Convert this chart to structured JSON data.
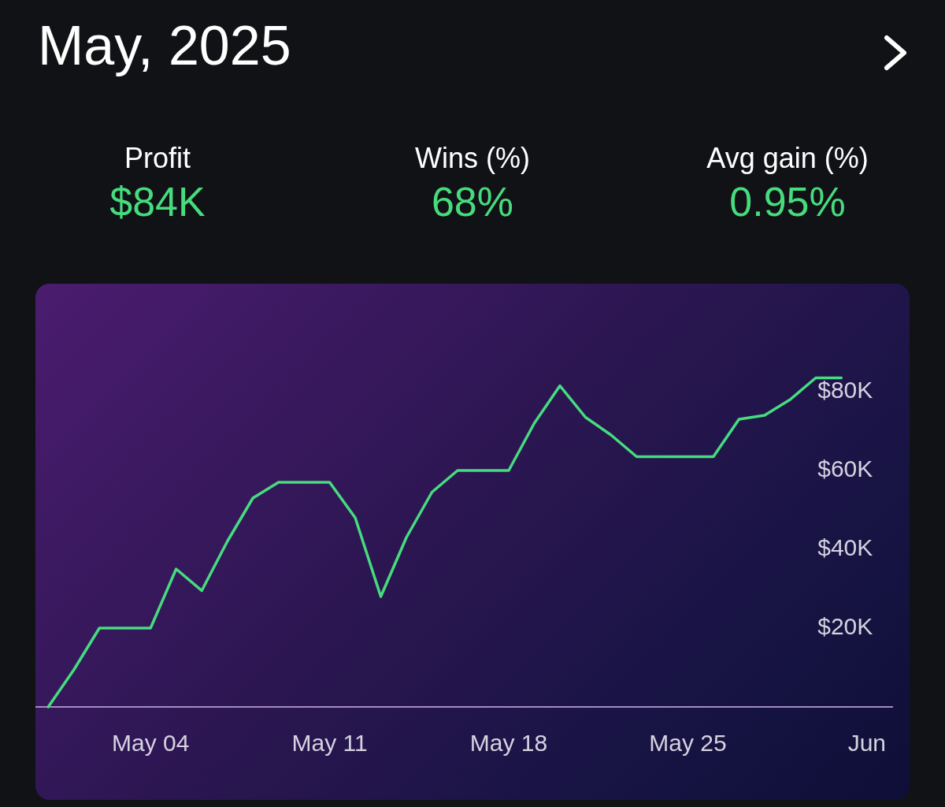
{
  "chart_data": [
    {
      "type": "other",
      "title": "May, 2025",
      "categories": [
        "Profit",
        "Wins (%)",
        "Avg gain (%)"
      ],
      "value_labels": [
        "$84K",
        "68%",
        "0.95%"
      ],
      "color": "#46dc7e"
    },
    {
      "type": "line",
      "x": [
        "2025-04-30",
        "2025-05-01",
        "2025-05-02",
        "2025-05-04",
        "2025-05-05",
        "2025-05-06",
        "2025-05-07",
        "2025-05-08",
        "2025-05-09",
        "2025-05-11",
        "2025-05-12",
        "2025-05-13",
        "2025-05-14",
        "2025-05-15",
        "2025-05-16",
        "2025-05-18",
        "2025-05-19",
        "2025-05-20",
        "2025-05-21",
        "2025-05-22",
        "2025-05-23",
        "2025-05-26",
        "2025-05-27",
        "2025-05-28",
        "2025-05-29",
        "2025-05-30",
        "2025-05-31"
      ],
      "series": [
        {
          "color": "#46dc7e",
          "values": [
            0,
            9400,
            20000,
            20000,
            35000,
            29500,
            42000,
            53000,
            57000,
            57000,
            48000,
            28000,
            43000,
            54500,
            60000,
            60000,
            72000,
            81500,
            73500,
            69000,
            63500,
            63500,
            73000,
            74000,
            78000,
            83500,
            83500
          ]
        }
      ],
      "xlim": [
        "2025-04-29T12:00",
        "2025-06-02"
      ],
      "xticks": [
        {
          "value": "2025-05-04",
          "label": "May 04"
        },
        {
          "value": "2025-05-11",
          "label": "May 11"
        },
        {
          "value": "2025-05-18",
          "label": "May 18"
        },
        {
          "value": "2025-05-25",
          "label": "May 25"
        },
        {
          "value": "2025-06-01",
          "label": "Jun"
        }
      ],
      "ylim": [
        -23600,
        107400
      ],
      "yticks": [
        {
          "value": 20000,
          "label": "$20K"
        },
        {
          "value": 40000,
          "label": "$40K"
        },
        {
          "value": 60000,
          "label": "$60K"
        },
        {
          "value": 80000,
          "label": "$80K"
        }
      ],
      "grid": false,
      "legend": false,
      "marker": "none",
      "line_style": "solid"
    }
  ]
}
